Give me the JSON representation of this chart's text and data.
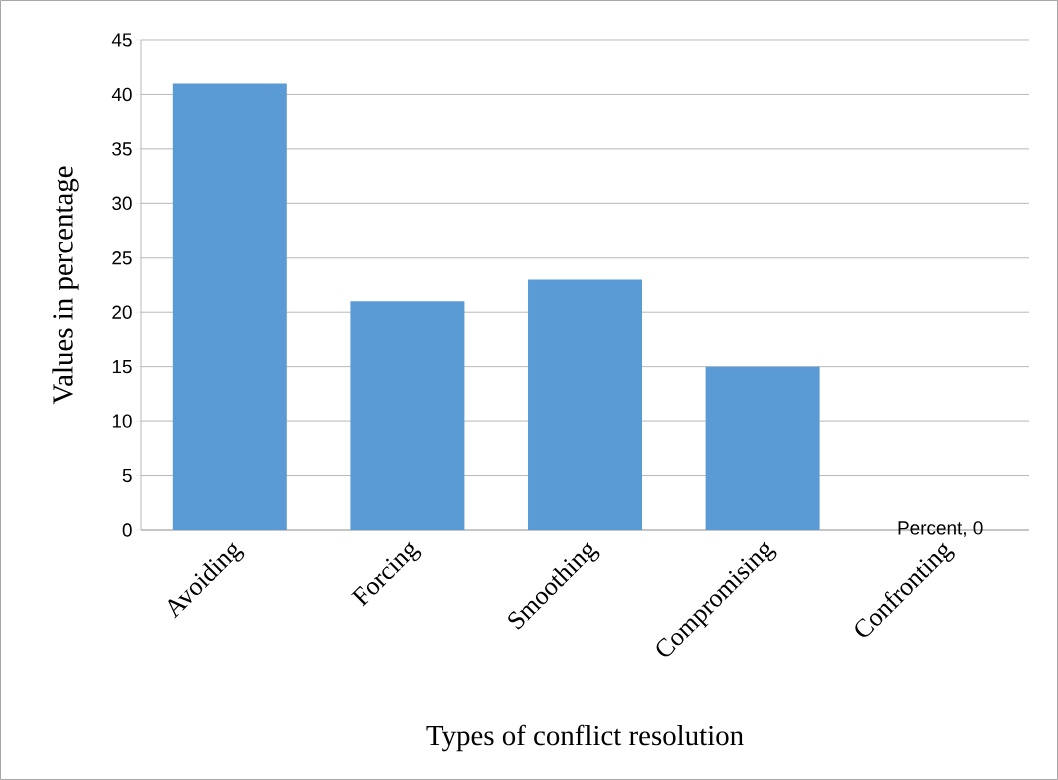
{
  "chart_data": {
    "type": "bar",
    "xlabel": "Types of conflict resolution",
    "ylabel": "Values in percentage",
    "categories": [
      "Avoiding",
      "Forcing",
      "Smoothing",
      "Compromising",
      "Confronting"
    ],
    "values": [
      41,
      21,
      23,
      15,
      0
    ],
    "value_labels": [
      null,
      null,
      null,
      null,
      "Percent, 0"
    ],
    "color": "#5b9bd5",
    "ylim": [
      0,
      45
    ],
    "yticks": [
      0,
      5,
      10,
      15,
      20,
      25,
      30,
      35,
      40,
      45
    ],
    "grid": "y"
  }
}
